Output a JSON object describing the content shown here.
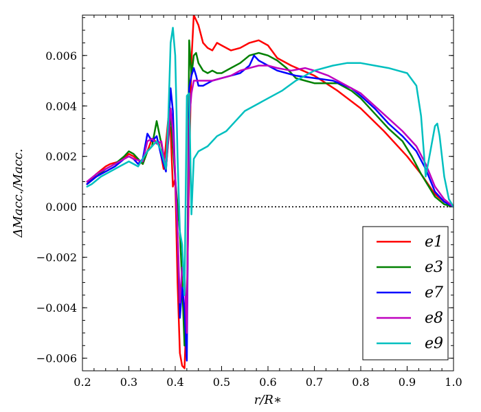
{
  "chart_data": {
    "type": "line",
    "xlabel": "r/R∗",
    "ylabel": "ΔMacc./Macc.",
    "xlim": [
      0.2,
      1.0
    ],
    "ylim": [
      -0.0065,
      0.0076
    ],
    "x_ticks": [
      0.2,
      0.3,
      0.4,
      0.5,
      0.6,
      0.7,
      0.8,
      0.9,
      1.0
    ],
    "x_tick_labels": [
      "0.2",
      "0.3",
      "0.4",
      "0.5",
      "0.6",
      "0.7",
      "0.8",
      "0.9",
      "1.0"
    ],
    "y_ticks": [
      -0.006,
      -0.004,
      -0.002,
      0.0,
      0.002,
      0.004,
      0.006
    ],
    "y_tick_labels": [
      "−0.006",
      "−0.004",
      "−0.002",
      "0.000",
      "0.002",
      "0.004",
      "0.006"
    ],
    "zero_line": "dotted",
    "grid": false,
    "legend_position": "lower-right",
    "series": [
      {
        "name": "e1",
        "color": "#ff0000",
        "points": [
          [
            0.21,
            0.0009
          ],
          [
            0.23,
            0.0013
          ],
          [
            0.25,
            0.0016
          ],
          [
            0.26,
            0.0017
          ],
          [
            0.28,
            0.0018
          ],
          [
            0.3,
            0.0021
          ],
          [
            0.31,
            0.002
          ],
          [
            0.33,
            0.0017
          ],
          [
            0.35,
            0.0027
          ],
          [
            0.365,
            0.0025
          ],
          [
            0.375,
            0.0015
          ],
          [
            0.385,
            0.0035
          ],
          [
            0.39,
            0.003
          ],
          [
            0.395,
            0.0008
          ],
          [
            0.4,
            0.0011
          ],
          [
            0.405,
            -0.003
          ],
          [
            0.41,
            -0.0058
          ],
          [
            0.415,
            -0.0063
          ],
          [
            0.42,
            -0.0064
          ],
          [
            0.425,
            -0.004
          ],
          [
            0.43,
            0.0015
          ],
          [
            0.435,
            0.0058
          ],
          [
            0.44,
            0.0076
          ],
          [
            0.45,
            0.0072
          ],
          [
            0.46,
            0.0065
          ],
          [
            0.47,
            0.0063
          ],
          [
            0.48,
            0.0062
          ],
          [
            0.49,
            0.0065
          ],
          [
            0.5,
            0.0064
          ],
          [
            0.52,
            0.0062
          ],
          [
            0.54,
            0.0063
          ],
          [
            0.56,
            0.0065
          ],
          [
            0.58,
            0.0066
          ],
          [
            0.6,
            0.0064
          ],
          [
            0.62,
            0.0059
          ],
          [
            0.65,
            0.0056
          ],
          [
            0.7,
            0.0052
          ],
          [
            0.75,
            0.0046
          ],
          [
            0.8,
            0.0039
          ],
          [
            0.85,
            0.003
          ],
          [
            0.9,
            0.002
          ],
          [
            0.93,
            0.0013
          ],
          [
            0.96,
            0.0005
          ],
          [
            0.98,
            0.0002
          ],
          [
            1.0,
            0.0
          ]
        ]
      },
      {
        "name": "e3",
        "color": "#008000",
        "points": [
          [
            0.21,
            0.0009
          ],
          [
            0.23,
            0.0012
          ],
          [
            0.25,
            0.0015
          ],
          [
            0.27,
            0.0017
          ],
          [
            0.29,
            0.002
          ],
          [
            0.3,
            0.0022
          ],
          [
            0.31,
            0.0021
          ],
          [
            0.33,
            0.0017
          ],
          [
            0.34,
            0.0022
          ],
          [
            0.35,
            0.0024
          ],
          [
            0.36,
            0.0034
          ],
          [
            0.37,
            0.0025
          ],
          [
            0.38,
            0.0015
          ],
          [
            0.39,
            0.0037
          ],
          [
            0.4,
            0.0011
          ],
          [
            0.41,
            -0.001
          ],
          [
            0.415,
            -0.003
          ],
          [
            0.42,
            -0.0055
          ],
          [
            0.425,
            -0.005
          ],
          [
            0.43,
            0.0066
          ],
          [
            0.435,
            0.0052
          ],
          [
            0.44,
            0.006
          ],
          [
            0.445,
            0.0061
          ],
          [
            0.45,
            0.0057
          ],
          [
            0.46,
            0.0054
          ],
          [
            0.47,
            0.0053
          ],
          [
            0.48,
            0.0054
          ],
          [
            0.49,
            0.0053
          ],
          [
            0.5,
            0.0053
          ],
          [
            0.52,
            0.0055
          ],
          [
            0.54,
            0.0057
          ],
          [
            0.56,
            0.006
          ],
          [
            0.58,
            0.0061
          ],
          [
            0.6,
            0.006
          ],
          [
            0.62,
            0.0058
          ],
          [
            0.64,
            0.0055
          ],
          [
            0.66,
            0.0051
          ],
          [
            0.68,
            0.005
          ],
          [
            0.7,
            0.0049
          ],
          [
            0.72,
            0.0049
          ],
          [
            0.75,
            0.0049
          ],
          [
            0.78,
            0.0046
          ],
          [
            0.8,
            0.0043
          ],
          [
            0.83,
            0.0037
          ],
          [
            0.86,
            0.0031
          ],
          [
            0.89,
            0.0026
          ],
          [
            0.91,
            0.002
          ],
          [
            0.93,
            0.0013
          ],
          [
            0.96,
            0.0004
          ],
          [
            0.98,
            0.0001
          ],
          [
            1.0,
            0.0
          ]
        ]
      },
      {
        "name": "e7",
        "color": "#0000ff",
        "points": [
          [
            0.21,
            0.0009
          ],
          [
            0.23,
            0.0012
          ],
          [
            0.25,
            0.0014
          ],
          [
            0.27,
            0.0016
          ],
          [
            0.29,
            0.0019
          ],
          [
            0.3,
            0.002
          ],
          [
            0.31,
            0.0019
          ],
          [
            0.32,
            0.0017
          ],
          [
            0.33,
            0.0019
          ],
          [
            0.34,
            0.0029
          ],
          [
            0.35,
            0.0026
          ],
          [
            0.36,
            0.0028
          ],
          [
            0.37,
            0.002
          ],
          [
            0.38,
            0.0014
          ],
          [
            0.39,
            0.0047
          ],
          [
            0.395,
            0.0038
          ],
          [
            0.4,
            0.0012
          ],
          [
            0.405,
            -0.001
          ],
          [
            0.41,
            -0.0044
          ],
          [
            0.415,
            -0.0032
          ],
          [
            0.42,
            -0.004
          ],
          [
            0.425,
            -0.0061
          ],
          [
            0.43,
            0.0047
          ],
          [
            0.435,
            0.0052
          ],
          [
            0.44,
            0.0055
          ],
          [
            0.445,
            0.0052
          ],
          [
            0.45,
            0.0048
          ],
          [
            0.46,
            0.0048
          ],
          [
            0.47,
            0.0049
          ],
          [
            0.48,
            0.005
          ],
          [
            0.5,
            0.0051
          ],
          [
            0.52,
            0.0052
          ],
          [
            0.54,
            0.0053
          ],
          [
            0.56,
            0.0056
          ],
          [
            0.57,
            0.006
          ],
          [
            0.58,
            0.0058
          ],
          [
            0.6,
            0.0056
          ],
          [
            0.62,
            0.0054
          ],
          [
            0.64,
            0.0053
          ],
          [
            0.66,
            0.0052
          ],
          [
            0.7,
            0.0051
          ],
          [
            0.74,
            0.005
          ],
          [
            0.78,
            0.0047
          ],
          [
            0.8,
            0.0044
          ],
          [
            0.83,
            0.0039
          ],
          [
            0.86,
            0.0033
          ],
          [
            0.89,
            0.0028
          ],
          [
            0.92,
            0.0022
          ],
          [
            0.94,
            0.0015
          ],
          [
            0.96,
            0.0006
          ],
          [
            0.98,
            0.0002
          ],
          [
            1.0,
            0.0
          ]
        ]
      },
      {
        "name": "e8",
        "color": "#bf00bf",
        "points": [
          [
            0.21,
            0.001
          ],
          [
            0.23,
            0.0013
          ],
          [
            0.25,
            0.0015
          ],
          [
            0.27,
            0.0017
          ],
          [
            0.29,
            0.0019
          ],
          [
            0.3,
            0.002
          ],
          [
            0.31,
            0.0019
          ],
          [
            0.33,
            0.0018
          ],
          [
            0.34,
            0.0026
          ],
          [
            0.35,
            0.0027
          ],
          [
            0.36,
            0.0025
          ],
          [
            0.37,
            0.0026
          ],
          [
            0.38,
            0.0015
          ],
          [
            0.39,
            0.0039
          ],
          [
            0.395,
            0.003
          ],
          [
            0.4,
            0.0013
          ],
          [
            0.405,
            -0.001
          ],
          [
            0.41,
            -0.0038
          ],
          [
            0.415,
            -0.0024
          ],
          [
            0.42,
            -0.0026
          ],
          [
            0.425,
            -0.005
          ],
          [
            0.43,
            0.0034
          ],
          [
            0.435,
            0.0045
          ],
          [
            0.44,
            0.005
          ],
          [
            0.46,
            0.005
          ],
          [
            0.48,
            0.005
          ],
          [
            0.5,
            0.0051
          ],
          [
            0.52,
            0.0052
          ],
          [
            0.54,
            0.0054
          ],
          [
            0.56,
            0.0055
          ],
          [
            0.58,
            0.0056
          ],
          [
            0.6,
            0.0056
          ],
          [
            0.62,
            0.0055
          ],
          [
            0.65,
            0.0054
          ],
          [
            0.68,
            0.0055
          ],
          [
            0.7,
            0.0054
          ],
          [
            0.73,
            0.0052
          ],
          [
            0.76,
            0.0049
          ],
          [
            0.8,
            0.0045
          ],
          [
            0.83,
            0.004
          ],
          [
            0.86,
            0.0035
          ],
          [
            0.89,
            0.003
          ],
          [
            0.92,
            0.0024
          ],
          [
            0.94,
            0.0017
          ],
          [
            0.96,
            0.0008
          ],
          [
            0.98,
            0.0003
          ],
          [
            1.0,
            0.0
          ]
        ]
      },
      {
        "name": "e9",
        "color": "#00bfbf",
        "points": [
          [
            0.21,
            0.0008
          ],
          [
            0.22,
            0.0009
          ],
          [
            0.24,
            0.0012
          ],
          [
            0.26,
            0.0014
          ],
          [
            0.28,
            0.0016
          ],
          [
            0.3,
            0.0018
          ],
          [
            0.32,
            0.0016
          ],
          [
            0.34,
            0.0022
          ],
          [
            0.36,
            0.0026
          ],
          [
            0.37,
            0.0022
          ],
          [
            0.38,
            0.0015
          ],
          [
            0.385,
            0.0035
          ],
          [
            0.39,
            0.0065
          ],
          [
            0.395,
            0.0071
          ],
          [
            0.4,
            0.006
          ],
          [
            0.405,
            0.002
          ],
          [
            0.41,
            -0.001
          ],
          [
            0.415,
            -0.0015
          ],
          [
            0.42,
            -0.0035
          ],
          [
            0.425,
            0.0044
          ],
          [
            0.43,
            0.0045
          ],
          [
            0.435,
            -0.0003
          ],
          [
            0.44,
            0.0019
          ],
          [
            0.45,
            0.0022
          ],
          [
            0.47,
            0.0024
          ],
          [
            0.49,
            0.0028
          ],
          [
            0.51,
            0.003
          ],
          [
            0.53,
            0.0034
          ],
          [
            0.55,
            0.0038
          ],
          [
            0.58,
            0.0041
          ],
          [
            0.6,
            0.0043
          ],
          [
            0.63,
            0.0046
          ],
          [
            0.66,
            0.005
          ],
          [
            0.7,
            0.0054
          ],
          [
            0.74,
            0.0056
          ],
          [
            0.77,
            0.0057
          ],
          [
            0.8,
            0.0057
          ],
          [
            0.83,
            0.0056
          ],
          [
            0.86,
            0.0055
          ],
          [
            0.88,
            0.0054
          ],
          [
            0.9,
            0.0053
          ],
          [
            0.92,
            0.0048
          ],
          [
            0.93,
            0.0036
          ],
          [
            0.94,
            0.0012
          ],
          [
            0.95,
            0.0022
          ],
          [
            0.96,
            0.0032
          ],
          [
            0.965,
            0.0033
          ],
          [
            0.97,
            0.0028
          ],
          [
            0.98,
            0.0012
          ],
          [
            0.99,
            0.0003
          ],
          [
            1.0,
            0.0
          ]
        ]
      }
    ]
  }
}
